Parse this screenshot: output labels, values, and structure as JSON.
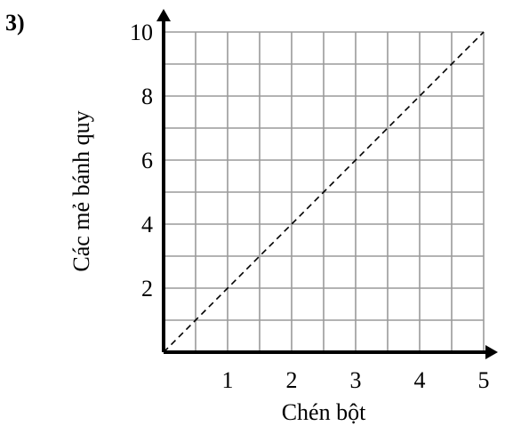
{
  "problem_number": "3)",
  "chart_data": {
    "type": "line",
    "xlabel": "Chén bột",
    "ylabel": "Các mẻ bánh quy",
    "xlim": [
      0,
      5
    ],
    "ylim": [
      0,
      10
    ],
    "x_ticks": [
      "1",
      "2",
      "3",
      "4",
      "5"
    ],
    "y_ticks": [
      "2",
      "4",
      "6",
      "8",
      "10"
    ],
    "grid": true,
    "grid_step_x": 0.5,
    "grid_step_y": 1,
    "series": [
      {
        "style": "dashed",
        "x": [
          0,
          5
        ],
        "y": [
          0,
          10
        ]
      }
    ]
  }
}
